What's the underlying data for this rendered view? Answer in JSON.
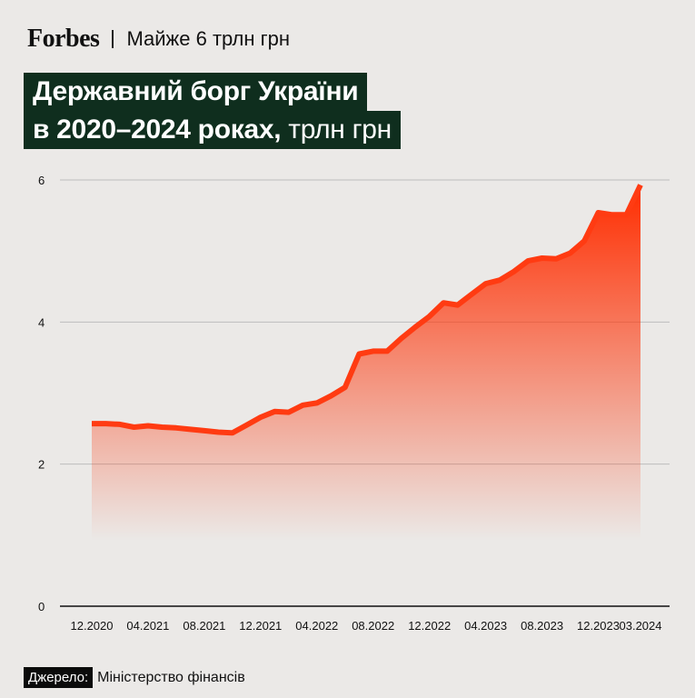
{
  "header": {
    "logo_text": "Forbes",
    "subtitle": "Майже 6 трлн грн"
  },
  "title": {
    "line1": "Державний борг України",
    "line2_bold": "в 2020–2024 роках,",
    "line2_light": "трлн грн"
  },
  "footer": {
    "source_label": "Джерело:",
    "source_value": "Міністерство фінансів"
  },
  "colors": {
    "line": "#ff3b12",
    "fill_top": "#ff2d00",
    "grid": "#bdbdbd",
    "axis": "#111111"
  },
  "chart_data": {
    "type": "area",
    "title": "Державний борг України в 2020–2024 роках, трлн грн",
    "xlabel": "",
    "ylabel": "трлн грн",
    "ylim": [
      0,
      6
    ],
    "yticks": [
      0,
      2,
      4,
      6
    ],
    "grid": true,
    "x_tick_labels": [
      "12.2020",
      "04.2021",
      "08.2021",
      "12.2021",
      "04.2022",
      "08.2022",
      "12.2022",
      "04.2023",
      "08.2023",
      "12.2023",
      "03.2024"
    ],
    "x_tick_indices": [
      0,
      4,
      8,
      12,
      16,
      20,
      24,
      28,
      32,
      36,
      39
    ],
    "series": [
      {
        "name": "Державний борг",
        "values": [
          2.57,
          2.57,
          2.56,
          2.52,
          2.54,
          2.52,
          2.51,
          2.49,
          2.47,
          2.45,
          2.44,
          2.55,
          2.66,
          2.74,
          2.73,
          2.83,
          2.86,
          2.96,
          3.08,
          3.55,
          3.59,
          3.59,
          3.77,
          3.93,
          4.08,
          4.27,
          4.24,
          4.39,
          4.54,
          4.59,
          4.71,
          4.86,
          4.9,
          4.89,
          4.97,
          5.14,
          5.54,
          5.51,
          5.51,
          5.93
        ]
      }
    ]
  }
}
